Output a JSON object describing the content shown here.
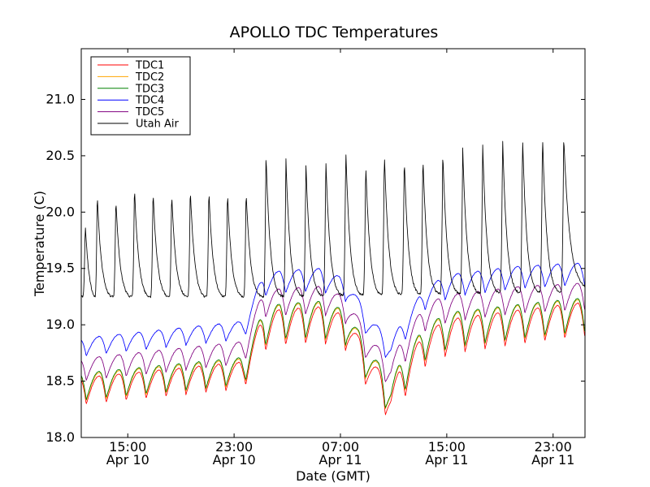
{
  "chart_data": {
    "type": "line",
    "title": "APOLLO TDC Temperatures",
    "xlabel": "Date (GMT)",
    "ylabel": "Temperature (C)",
    "x_unit": "hours since Apr 10 10:00 GMT",
    "xlim": [
      0,
      37.9
    ],
    "ylim": [
      18.0,
      21.45
    ],
    "y_ticks": [
      18.0,
      18.5,
      19.0,
      19.5,
      20.0,
      20.5,
      21.0
    ],
    "y_tick_labels": [
      "18.0",
      "18.5",
      "19.0",
      "19.5",
      "20.0",
      "20.5",
      "21.0"
    ],
    "x_ticks": [
      {
        "x": 3.5,
        "time": "15:00",
        "date": "Apr 10"
      },
      {
        "x": 11.5,
        "time": "23:00",
        "date": "Apr 10"
      },
      {
        "x": 19.5,
        "time": "07:00",
        "date": "Apr 11"
      },
      {
        "x": 27.5,
        "time": "15:00",
        "date": "Apr 11"
      },
      {
        "x": 35.5,
        "time": "23:00",
        "date": "Apr 11"
      }
    ],
    "grid": false,
    "legend_position": "top-left",
    "series": [
      {
        "name": "TDC1",
        "color": "#ff0000",
        "baseline": [
          [
            0,
            18.41
          ],
          [
            12.2,
            18.55
          ],
          [
            13.7,
            18.92
          ],
          [
            15,
            18.98
          ],
          [
            18,
            19.0
          ],
          [
            20,
            18.92
          ],
          [
            21.5,
            18.6
          ],
          [
            23.3,
            18.28
          ],
          [
            24,
            18.45
          ],
          [
            26,
            18.8
          ],
          [
            28,
            18.9
          ],
          [
            33,
            18.98
          ],
          [
            37.9,
            19.05
          ]
        ],
        "osc_amp": [
          [
            0,
            0.12
          ],
          [
            12,
            0.12
          ],
          [
            14,
            0.16
          ],
          [
            37.9,
            0.15
          ]
        ],
        "spikes": []
      },
      {
        "name": "TDC2",
        "color": "#ffa500",
        "baseline": [
          [
            0,
            18.44
          ],
          [
            12.2,
            18.58
          ],
          [
            13.7,
            18.96
          ],
          [
            15,
            19.02
          ],
          [
            18,
            19.04
          ],
          [
            20,
            18.96
          ],
          [
            21.5,
            18.65
          ],
          [
            23.3,
            18.33
          ],
          [
            24,
            18.5
          ],
          [
            26,
            18.85
          ],
          [
            28,
            18.95
          ],
          [
            33,
            19.02
          ],
          [
            37.9,
            19.08
          ]
        ],
        "osc_amp": [
          [
            0,
            0.12
          ],
          [
            12,
            0.12
          ],
          [
            14,
            0.16
          ],
          [
            37.9,
            0.15
          ]
        ],
        "spikes": []
      },
      {
        "name": "TDC3",
        "color": "#008000",
        "baseline": [
          [
            0,
            18.45
          ],
          [
            12.2,
            18.59
          ],
          [
            13.7,
            18.97
          ],
          [
            15,
            19.03
          ],
          [
            18,
            19.05
          ],
          [
            20,
            18.97
          ],
          [
            21.5,
            18.66
          ],
          [
            23.3,
            18.34
          ],
          [
            24,
            18.51
          ],
          [
            26,
            18.86
          ],
          [
            28,
            18.96
          ],
          [
            33,
            19.03
          ],
          [
            37.9,
            19.09
          ]
        ],
        "osc_amp": [
          [
            0,
            0.12
          ],
          [
            12,
            0.12
          ],
          [
            14,
            0.16
          ],
          [
            37.9,
            0.15
          ]
        ],
        "spikes": []
      },
      {
        "name": "TDC4",
        "color": "#0000ff",
        "baseline": [
          [
            0,
            18.8
          ],
          [
            12.2,
            18.95
          ],
          [
            13.7,
            19.35
          ],
          [
            15,
            19.38
          ],
          [
            18,
            19.4
          ],
          [
            20,
            19.3
          ],
          [
            21.5,
            19.0
          ],
          [
            23.3,
            18.75
          ],
          [
            24,
            18.9
          ],
          [
            26,
            19.25
          ],
          [
            28,
            19.35
          ],
          [
            33,
            19.42
          ],
          [
            37.9,
            19.45
          ]
        ],
        "osc_amp": [
          [
            0,
            0.08
          ],
          [
            12,
            0.08
          ],
          [
            14,
            0.1
          ],
          [
            37.9,
            0.1
          ]
        ],
        "spikes": []
      },
      {
        "name": "TDC5",
        "color": "#800080",
        "baseline": [
          [
            0,
            18.6
          ],
          [
            12.2,
            18.75
          ],
          [
            13.7,
            19.18
          ],
          [
            15,
            19.2
          ],
          [
            18,
            19.22
          ],
          [
            20,
            19.12
          ],
          [
            21.5,
            18.8
          ],
          [
            23.3,
            18.55
          ],
          [
            24,
            18.72
          ],
          [
            26,
            19.08
          ],
          [
            28,
            19.15
          ],
          [
            33,
            19.22
          ],
          [
            37.9,
            19.25
          ]
        ],
        "osc_amp": [
          [
            0,
            0.1
          ],
          [
            12,
            0.1
          ],
          [
            14,
            0.12
          ],
          [
            37.9,
            0.12
          ]
        ],
        "spikes": []
      },
      {
        "name": "Utah Air",
        "color": "#000000",
        "baseline": [
          [
            0,
            19.25
          ],
          [
            13.0,
            19.25
          ],
          [
            37.9,
            19.3
          ]
        ],
        "osc_amp": [],
        "spikes": [
          [
            0.3,
            19.9
          ],
          [
            1.2,
            20.17
          ],
          [
            2.6,
            20.12
          ],
          [
            4.0,
            20.23
          ],
          [
            5.4,
            20.2
          ],
          [
            6.8,
            20.18
          ],
          [
            8.2,
            20.22
          ],
          [
            9.6,
            20.2
          ],
          [
            11.0,
            20.18
          ],
          [
            12.4,
            20.2
          ],
          [
            13.9,
            20.52
          ],
          [
            15.4,
            20.47
          ],
          [
            16.9,
            20.44
          ],
          [
            18.4,
            20.47
          ],
          [
            19.9,
            20.57
          ],
          [
            21.4,
            20.44
          ],
          [
            22.8,
            20.54
          ],
          [
            24.3,
            20.49
          ],
          [
            25.7,
            20.51
          ],
          [
            27.2,
            20.54
          ],
          [
            28.7,
            20.57
          ],
          [
            30.2,
            20.61
          ],
          [
            31.7,
            20.67
          ],
          [
            33.2,
            20.68
          ],
          [
            34.7,
            20.7
          ],
          [
            36.3,
            20.68
          ]
        ]
      }
    ]
  }
}
